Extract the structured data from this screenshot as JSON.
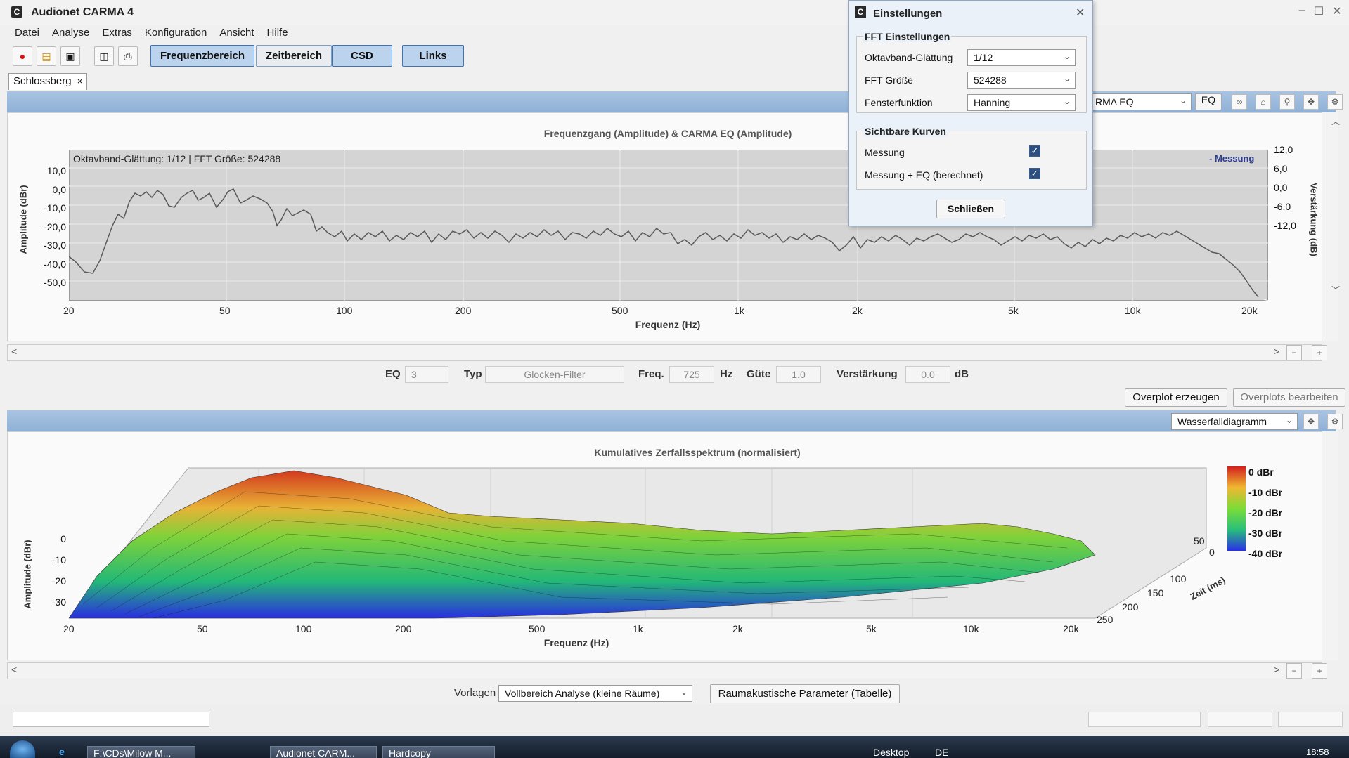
{
  "app": {
    "title": "Audionet CARMA 4",
    "icon": "C"
  },
  "menu": [
    "Datei",
    "Analyse",
    "Extras",
    "Konfiguration",
    "Ansicht",
    "Hilfe"
  ],
  "toolbar": {
    "modes": [
      "Frequenzbereich",
      "Zeitbereich",
      "CSD",
      "Links"
    ]
  },
  "tab": {
    "label": "Schlossberg",
    "close": "×"
  },
  "freq_chart": {
    "title": "Frequenzgang (Amplitude) & CARMA EQ (Amplitude)",
    "info": "Oktavband-Glättung: 1/12 | FFT Größe: 524288",
    "legend": "- Messung",
    "ylabel": "Amplitude (dBr)",
    "y2label": "Verstärkung (dB)",
    "xlabel": "Frequenz (Hz)",
    "yticks": [
      "10,0",
      "0,0",
      "-10,0",
      "-20,0",
      "-30,0",
      "-40,0",
      "-50,0"
    ],
    "y2ticks": [
      "12,0",
      "6,0",
      "0,0",
      "-6,0",
      "-12,0"
    ],
    "xticks": [
      "20",
      "50",
      "100",
      "200",
      "500",
      "1k",
      "2k",
      "5k",
      "10k",
      "20k"
    ],
    "eq_select": "RMA EQ",
    "eq_btn": "EQ"
  },
  "eq_row": {
    "eq_label": "EQ",
    "eq_value": "3",
    "typ_label": "Typ",
    "typ_value": "Glocken-Filter",
    "freq_label": "Freq.",
    "freq_value": "725",
    "freq_unit": "Hz",
    "guete_label": "Güte",
    "guete_value": "1.0",
    "gain_label": "Verstärkung",
    "gain_value": "0.0",
    "gain_unit": "dB"
  },
  "overplot": {
    "create": "Overplot erzeugen",
    "edit": "Overplots bearbeiten"
  },
  "csd_chart": {
    "type_select": "Wasserfalldiagramm",
    "title": "Kumulatives Zerfallsspektrum (normalisiert)",
    "ylabel": "Amplitude (dBr)",
    "xlabel": "Frequenz (Hz)",
    "zlabel": "Zeit (ms)",
    "yticks": [
      "0",
      "-10",
      "-20",
      "-30"
    ],
    "xticks": [
      "20",
      "50",
      "100",
      "200",
      "500",
      "1k",
      "2k",
      "5k",
      "10k",
      "20k"
    ],
    "zticks": [
      "0",
      "50",
      "100",
      "150",
      "200",
      "250"
    ],
    "colorbar": [
      "0 dBr",
      "-10 dBr",
      "-20 dBr",
      "-30 dBr",
      "-40 dBr"
    ]
  },
  "bottom": {
    "vorlagen_label": "Vorlagen",
    "vorlagen_value": "Vollbereich Analyse (kleine Räume)",
    "raum_btn": "Raumakustische Parameter (Tabelle)"
  },
  "dialog": {
    "title": "Einstellungen",
    "fft_group": "FFT Einstellungen",
    "smooth_label": "Oktavband-Glättung",
    "smooth_value": "1/12",
    "fft_label": "FFT Größe",
    "fft_value": "524288",
    "window_label": "Fensterfunktion",
    "window_value": "Hanning",
    "curves_group": "Sichtbare Kurven",
    "curve1": "Messung",
    "curve2": "Messung + EQ (berechnet)",
    "close_btn": "Schließen"
  },
  "taskbar": {
    "items": [
      "F:\\CDs\\Milow M...",
      "Audionet CARM...",
      "Hardcopy"
    ],
    "desktop": "Desktop",
    "lang": "DE",
    "time": "18:58"
  }
}
